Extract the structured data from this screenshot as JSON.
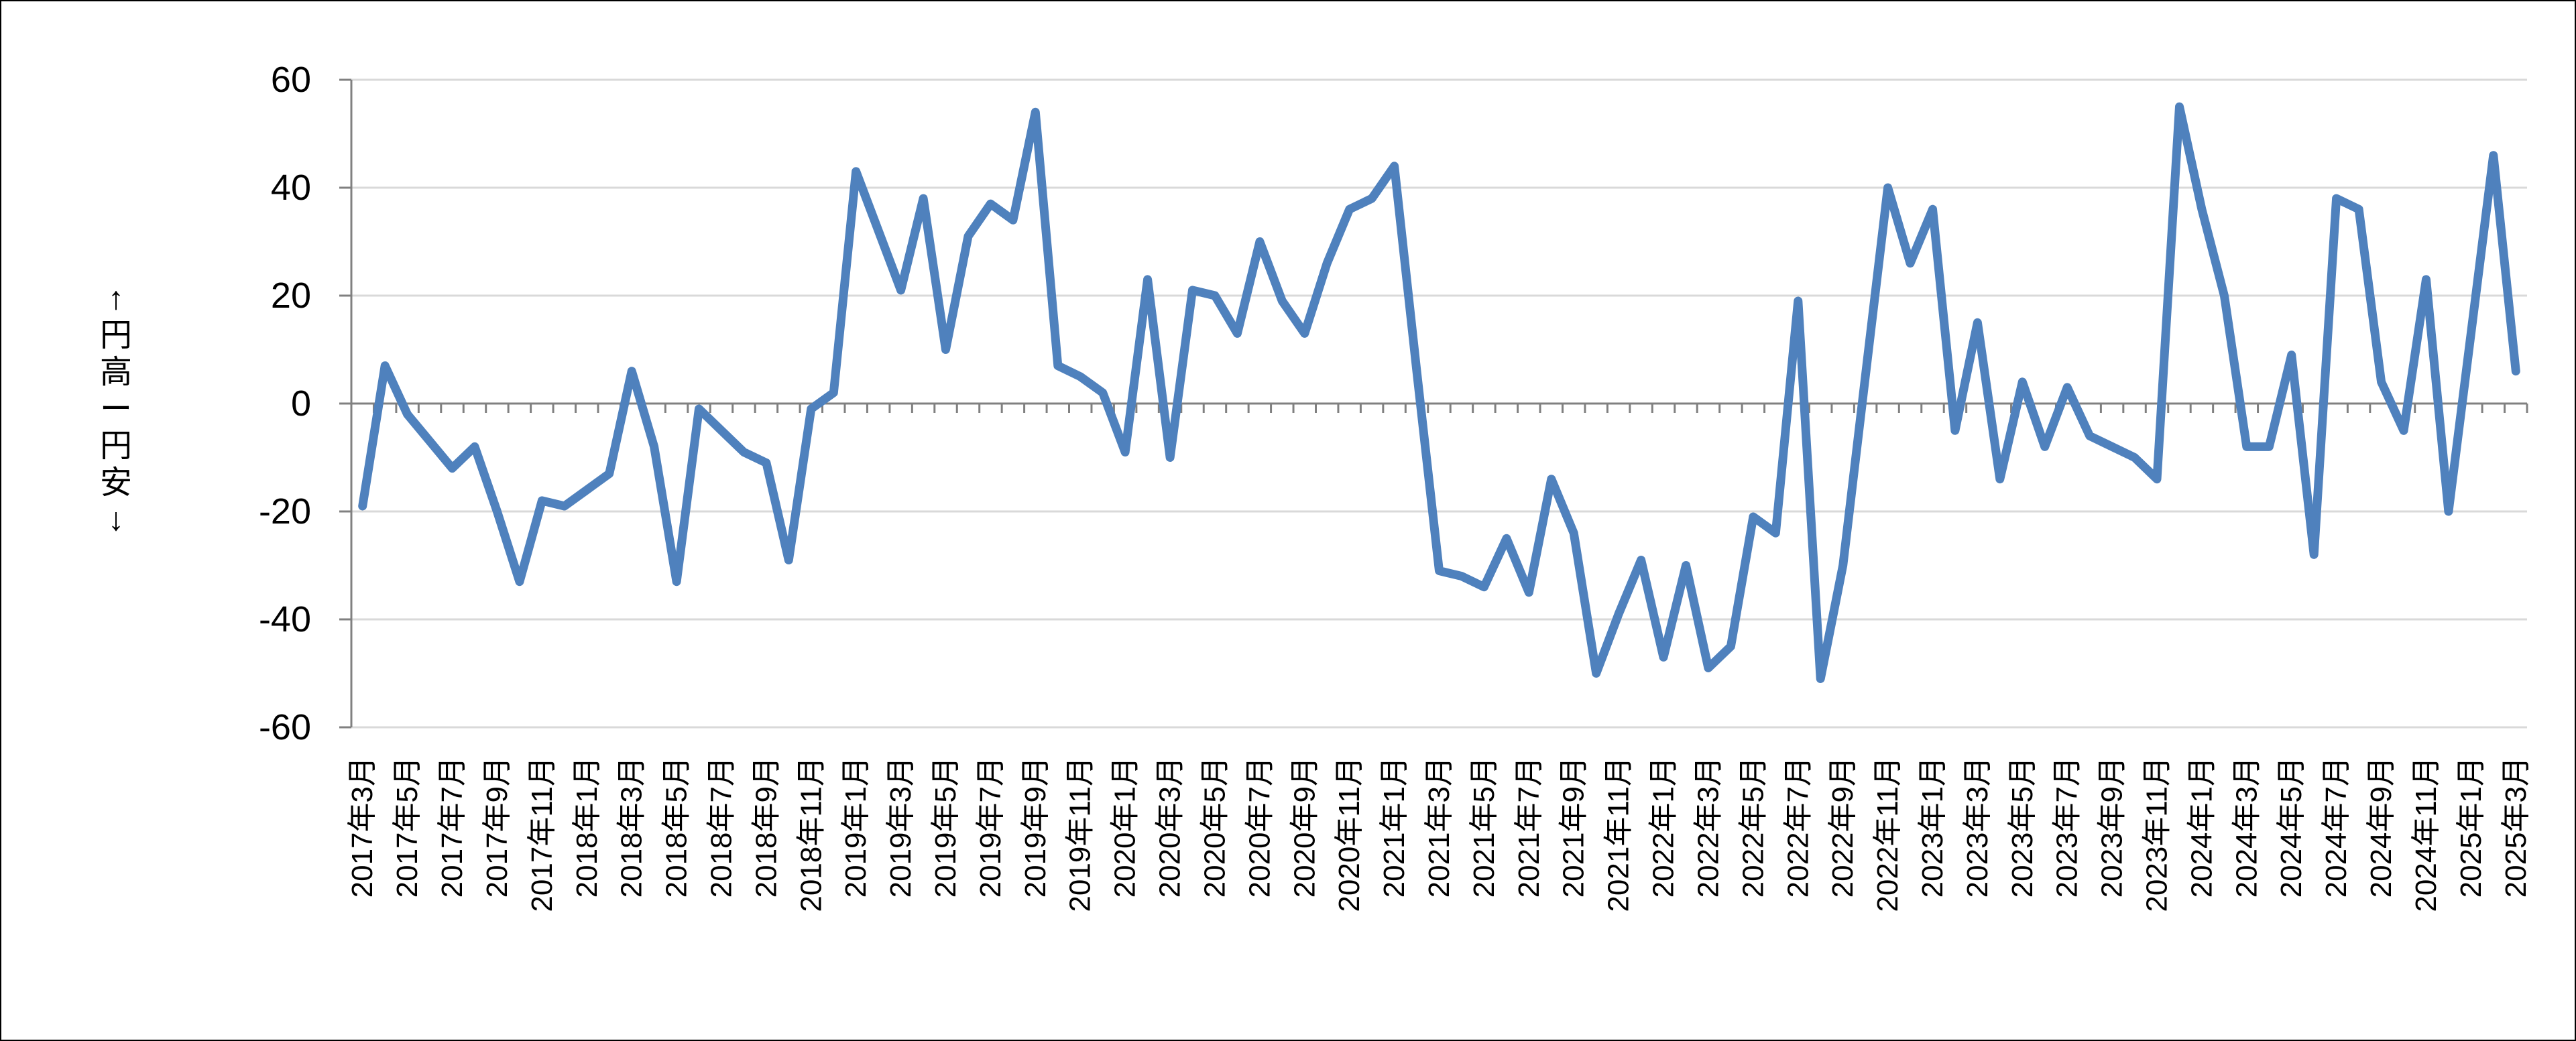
{
  "chart_data": {
    "type": "line",
    "title": "",
    "y_axis_title": "↑円高ー円安↓",
    "xlabel": "",
    "ylabel": "",
    "ylim": [
      -60,
      60
    ],
    "y_ticks": [
      60,
      40,
      20,
      0,
      -20,
      -40,
      -60
    ],
    "x_label_interval": 2,
    "grid": "horizontal",
    "legend_position": "none",
    "x": [
      "2017年3月",
      "2017年4月",
      "2017年5月",
      "2017年6月",
      "2017年7月",
      "2017年8月",
      "2017年9月",
      "2017年10月",
      "2017年11月",
      "2017年12月",
      "2018年1月",
      "2018年2月",
      "2018年3月",
      "2018年4月",
      "2018年5月",
      "2018年6月",
      "2018年7月",
      "2018年8月",
      "2018年9月",
      "2018年10月",
      "2018年11月",
      "2018年12月",
      "2019年1月",
      "2019年2月",
      "2019年3月",
      "2019年4月",
      "2019年5月",
      "2019年6月",
      "2019年7月",
      "2019年8月",
      "2019年9月",
      "2019年10月",
      "2019年11月",
      "2019年12月",
      "2020年1月",
      "2020年2月",
      "2020年3月",
      "2020年4月",
      "2020年5月",
      "2020年6月",
      "2020年7月",
      "2020年8月",
      "2020年9月",
      "2020年10月",
      "2020年11月",
      "2020年12月",
      "2021年1月",
      "2021年2月",
      "2021年3月",
      "2021年4月",
      "2021年5月",
      "2021年6月",
      "2021年7月",
      "2021年8月",
      "2021年9月",
      "2021年10月",
      "2021年11月",
      "2021年12月",
      "2022年1月",
      "2022年2月",
      "2022年3月",
      "2022年4月",
      "2022年5月",
      "2022年6月",
      "2022年7月",
      "2022年8月",
      "2022年9月",
      "2022年10月",
      "2022年11月",
      "2022年12月",
      "2023年1月",
      "2023年2月",
      "2023年3月",
      "2023年4月",
      "2023年5月",
      "2023年6月",
      "2023年7月",
      "2023年8月",
      "2023年9月",
      "2023年10月",
      "2023年11月",
      "2023年12月",
      "2024年1月",
      "2024年2月",
      "2024年3月",
      "2024年4月",
      "2024年5月",
      "2024年6月",
      "2024年7月",
      "2024年8月",
      "2024年9月",
      "2024年10月",
      "2024年11月",
      "2024年12月",
      "2025年1月",
      "2025年2月",
      "2025年3月"
    ],
    "series": [
      {
        "name": "",
        "color": "#4F81BD",
        "values": [
          -19,
          7,
          -2,
          -7,
          -12,
          -8,
          -20,
          -33,
          -18,
          -19,
          -16,
          -13,
          6,
          -8,
          -33,
          -1,
          -5,
          -9,
          -11,
          -29,
          -1,
          2,
          43,
          32,
          21,
          38,
          10,
          31,
          37,
          34,
          54,
          7,
          5,
          2,
          -9,
          23,
          -10,
          21,
          20,
          13,
          30,
          19,
          13,
          26,
          36,
          38,
          44,
          6,
          -31,
          -32,
          -34,
          -25,
          -35,
          -14,
          -24,
          -50,
          -39,
          -29,
          -47,
          -30,
          -49,
          -45,
          -21,
          -24,
          19,
          -51,
          -30,
          5,
          40,
          26,
          36,
          -5,
          15,
          -14,
          4,
          -8,
          3,
          -6,
          -8,
          -10,
          -14,
          55,
          36,
          20,
          -8,
          -8,
          9,
          -28,
          38,
          36,
          4,
          -5,
          23,
          -20,
          13,
          46,
          6
        ]
      }
    ],
    "colors": {
      "line": "#4F81BD",
      "gridline": "#D9D9D9",
      "axis": "#808080",
      "text": "#000000",
      "background": "#FFFFFF",
      "border": "#000000"
    }
  }
}
